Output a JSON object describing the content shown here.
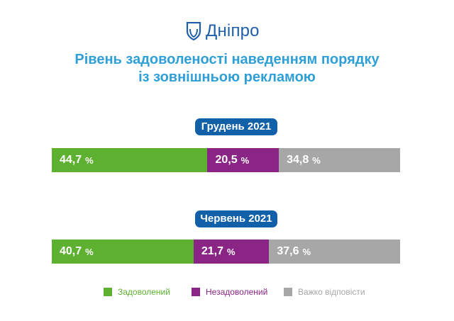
{
  "logo": {
    "text": "Дніпро"
  },
  "title": {
    "line1": "Рівень задоволеності наведенням порядку",
    "line2": "із зовнішньою рекламою"
  },
  "colors": {
    "satisfied": "#5eb130",
    "unsatisfied": "#8b2585",
    "hard": "#a7a7a7",
    "pill": "#1260a8",
    "title": "#2f9fd8",
    "logo": "#1f5fa8"
  },
  "legend": {
    "satisfied": "Задоволений",
    "unsatisfied": "Незадоволений",
    "hard": "Важко відповісти"
  },
  "chart_data": {
    "type": "bar",
    "orientation": "horizontal-stacked-100",
    "unit": "%",
    "categories": [
      "Грудень 2021",
      "Червень 2021"
    ],
    "series": [
      {
        "name": "Задоволений",
        "values": [
          44.7,
          40.7
        ],
        "labels": [
          "44,7",
          "40,7"
        ]
      },
      {
        "name": "Незадоволений",
        "values": [
          20.5,
          21.7
        ],
        "labels": [
          "20,5",
          "21,7"
        ]
      },
      {
        "name": "Важко відповісти",
        "values": [
          34.8,
          37.6
        ],
        "labels": [
          "34,8",
          "37,6"
        ]
      }
    ],
    "legend_position": "bottom"
  }
}
